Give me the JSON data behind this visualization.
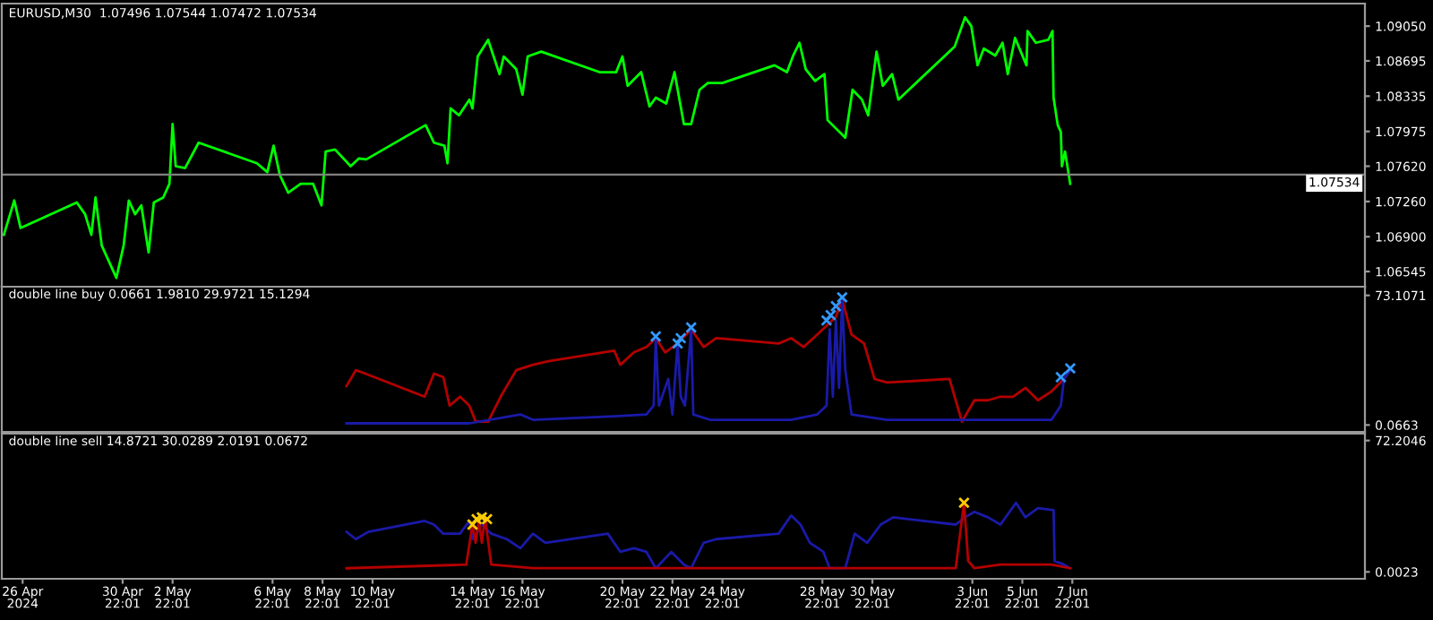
{
  "chart_data": [
    {
      "type": "line",
      "title": "EURUSD,M30  1.07496 1.07544 1.07472 1.07534",
      "xlim": [
        "2024-04-26T02:00",
        "2024-06-19T15:00"
      ],
      "ylim": [
        1.0639,
        1.0928
      ],
      "yticks": [
        {
          "value": 1.06545,
          "label": "1.06545"
        },
        {
          "value": 1.069,
          "label": "1.06900"
        },
        {
          "value": 1.0726,
          "label": "1.07260"
        },
        {
          "value": 1.0762,
          "label": "1.07620"
        },
        {
          "value": 1.07975,
          "label": "1.07975"
        },
        {
          "value": 1.08335,
          "label": "1.08335"
        },
        {
          "value": 1.08695,
          "label": "1.08695"
        },
        {
          "value": 1.0905,
          "label": "1.09050"
        }
      ],
      "tick_labels": "y",
      "ref_lines": [
        {
          "axis": "y",
          "value": 1.07534,
          "label": "1.07534",
          "color": "#808080"
        }
      ],
      "series": [
        {
          "color": "#00ff00",
          "x": [
            "2024-04-26T04:00",
            "2024-04-26T14:00",
            "2024-04-26T20:00",
            "2024-04-29T02:00",
            "2024-04-29T10:00",
            "2024-04-29T16:00",
            "2024-04-29T20:00",
            "2024-04-30T02:00",
            "2024-04-30T16:00",
            "2024-04-30T23:00",
            "2024-05-01T04:00",
            "2024-05-01T10:00",
            "2024-05-01T16:00",
            "2024-05-01T23:00",
            "2024-05-02T04:00",
            "2024-05-02T13:00",
            "2024-05-02T19:00",
            "2024-05-02T22:00",
            "2024-05-03T01:00",
            "2024-05-03T10:00",
            "2024-05-03T23:00",
            "2024-05-06T07:00",
            "2024-05-06T17:00",
            "2024-05-06T23:00",
            "2024-05-07T05:00",
            "2024-05-07T13:00",
            "2024-05-08T01:00",
            "2024-05-08T13:00",
            "2024-05-08T21:00",
            "2024-05-09T01:00",
            "2024-05-09T10:00",
            "2024-05-10T01:00",
            "2024-05-10T09:00",
            "2024-05-10T16:00",
            "2024-05-13T01:00",
            "2024-05-13T09:00",
            "2024-05-13T19:00",
            "2024-05-13T22:00",
            "2024-05-14T01:00",
            "2024-05-14T09:00",
            "2024-05-14T19:00",
            "2024-05-14T22:00",
            "2024-05-15T03:00",
            "2024-05-15T13:00",
            "2024-05-16T00:00",
            "2024-05-16T04:00",
            "2024-05-16T16:00",
            "2024-05-16T22:00",
            "2024-05-17T03:00",
            "2024-05-17T16:00",
            "2024-05-20T00:00",
            "2024-05-20T16:00",
            "2024-05-20T22:00",
            "2024-05-21T03:00",
            "2024-05-21T16:00",
            "2024-05-22T00:00",
            "2024-05-22T06:00",
            "2024-05-22T16:00",
            "2024-05-23T00:00",
            "2024-05-23T09:00",
            "2024-05-23T16:00",
            "2024-05-24T00:00",
            "2024-05-24T08:00",
            "2024-05-24T22:00",
            "2024-05-27T00:00",
            "2024-05-27T12:00",
            "2024-05-27T18:00",
            "2024-05-28T00:00",
            "2024-05-28T06:00",
            "2024-05-28T15:00",
            "2024-05-29T00:00",
            "2024-05-29T03:00",
            "2024-05-29T20:00",
            "2024-05-30T03:00",
            "2024-05-30T12:00",
            "2024-05-30T18:00",
            "2024-05-31T02:00",
            "2024-05-31T08:00",
            "2024-05-31T17:00",
            "2024-05-31T23:00",
            "2024-06-03T05:00",
            "2024-06-03T15:00",
            "2024-06-03T21:00",
            "2024-06-04T03:00",
            "2024-06-04T09:00",
            "2024-06-04T20:00",
            "2024-06-05T03:00",
            "2024-06-05T08:00",
            "2024-06-05T15:00",
            "2024-06-06T02:00",
            "2024-06-06T03:00",
            "2024-06-06T11:00",
            "2024-06-06T23:00",
            "2024-06-07T03:00",
            "2024-06-07T04:00",
            "2024-06-07T08:00",
            "2024-06-07T11:00",
            "2024-06-07T12:00",
            "2024-06-07T15:00",
            "2024-06-07T20:00"
          ],
          "values": [
            1.0692,
            1.0727,
            1.0699,
            1.0725,
            1.0713,
            1.0692,
            1.073,
            1.0681,
            1.0648,
            1.0681,
            1.0727,
            1.0713,
            1.0722,
            1.0674,
            1.0725,
            1.073,
            1.0744,
            1.0805,
            1.0762,
            1.076,
            1.0786,
            1.0765,
            1.0756,
            1.0783,
            1.0753,
            1.0735,
            1.0744,
            1.0744,
            1.0722,
            1.0777,
            1.0779,
            1.0762,
            1.077,
            1.0769,
            1.0804,
            1.0786,
            1.0783,
            1.0765,
            1.0821,
            1.0814,
            1.083,
            1.0821,
            1.0874,
            1.0891,
            1.0856,
            1.0874,
            1.0861,
            1.0835,
            1.0874,
            1.0879,
            1.0858,
            1.0858,
            1.0874,
            1.0844,
            1.0858,
            1.0823,
            1.0832,
            1.0826,
            1.0858,
            1.0805,
            1.0805,
            1.084,
            1.0847,
            1.0847,
            1.0865,
            1.0858,
            1.0875,
            1.0888,
            1.0861,
            1.0849,
            1.0856,
            1.0809,
            1.0791,
            1.084,
            1.083,
            1.0814,
            1.0879,
            1.0844,
            1.0856,
            1.083,
            1.0884,
            1.0914,
            1.0905,
            1.0865,
            1.0882,
            1.0875,
            1.0888,
            1.0856,
            1.0893,
            1.0865,
            1.09,
            1.0888,
            1.0891,
            1.09,
            1.0832,
            1.0804,
            1.0797,
            1.0762,
            1.0777,
            1.0744
          ]
        }
      ]
    },
    {
      "type": "line",
      "title": "double line buy 0.0661 1.9810 29.9721 15.1294",
      "xlim": [
        "2024-04-26T02:00",
        "2024-06-19T15:00"
      ],
      "ylim": [
        -3.8,
        78.0
      ],
      "yticks": [
        {
          "value": 0.0663,
          "label": "0.0663"
        },
        {
          "value": 73.1071,
          "label": "73.1071"
        }
      ],
      "tick_labels": "y",
      "series": [
        {
          "color": "#b40000",
          "x": [
            "2024-05-09T21:00",
            "2024-05-10T06:00",
            "2024-05-10T15:00",
            "2024-05-13T00:00",
            "2024-05-13T09:00",
            "2024-05-13T18:00",
            "2024-05-14T00:00",
            "2024-05-14T10:00",
            "2024-05-14T19:00",
            "2024-05-15T01:00",
            "2024-05-15T13:00",
            "2024-05-16T01:00",
            "2024-05-16T16:00",
            "2024-05-17T08:00",
            "2024-05-17T23:00",
            "2024-05-20T14:00",
            "2024-05-20T20:00",
            "2024-05-21T09:00",
            "2024-05-21T21:00",
            "2024-05-22T06:00",
            "2024-05-22T15:00",
            "2024-05-23T03:00",
            "2024-05-23T16:00",
            "2024-05-24T04:00",
            "2024-05-24T16:00",
            "2024-05-27T04:00",
            "2024-05-27T16:00",
            "2024-05-28T04:00",
            "2024-05-28T17:00",
            "2024-05-29T02:00",
            "2024-05-29T11:00",
            "2024-05-29T17:00",
            "2024-05-30T02:00",
            "2024-05-30T14:00",
            "2024-05-31T00:00",
            "2024-05-31T12:00",
            "2024-06-03T00:00",
            "2024-06-03T12:00",
            "2024-06-04T00:00",
            "2024-06-04T13:00",
            "2024-06-05T01:00",
            "2024-06-05T13:00",
            "2024-06-06T01:00",
            "2024-06-06T13:00",
            "2024-06-07T02:00",
            "2024-06-07T14:00",
            "2024-06-07T20:00"
          ],
          "values": [
            22,
            31,
            29,
            16,
            29,
            27,
            11,
            16,
            11,
            2,
            2,
            16,
            31,
            34,
            36,
            42,
            34,
            41,
            44,
            49,
            41,
            46,
            54,
            44,
            49,
            46,
            49,
            44,
            51,
            56,
            61,
            71,
            51,
            46,
            26,
            24,
            26,
            2,
            14,
            14,
            16,
            16,
            21,
            14,
            19,
            26,
            31
          ]
        },
        {
          "color": "#1a1aa8",
          "x": [
            "2024-05-09T21:00",
            "2024-05-14T19:00",
            "2024-05-16T20:00",
            "2024-05-17T08:00",
            "2024-05-20T14:00",
            "2024-05-21T21:00",
            "2024-05-22T04:00",
            "2024-05-22T06:00",
            "2024-05-22T09:00",
            "2024-05-22T18:00",
            "2024-05-22T22:00",
            "2024-05-23T03:00",
            "2024-05-23T06:00",
            "2024-05-23T10:00",
            "2024-05-23T16:00",
            "2024-05-23T18:00",
            "2024-05-24T10:00",
            "2024-05-27T16:00",
            "2024-05-28T17:00",
            "2024-05-29T02:00",
            "2024-05-29T05:00",
            "2024-05-29T08:00",
            "2024-05-29T11:00",
            "2024-05-29T14:00",
            "2024-05-29T17:00",
            "2024-05-29T20:00",
            "2024-05-30T02:00",
            "2024-05-31T12:00",
            "2024-06-05T01:00",
            "2024-06-07T02:00",
            "2024-06-07T11:00",
            "2024-06-07T14:00",
            "2024-06-07T20:00"
          ],
          "values": [
            1,
            1,
            6,
            3,
            5,
            6,
            11,
            49,
            11,
            26,
            6,
            46,
            16,
            11,
            54,
            6,
            3,
            3,
            6,
            11,
            54,
            16,
            59,
            21,
            71,
            31,
            6,
            3,
            3,
            3,
            11,
            26,
            31
          ]
        },
        {
          "type": "scatter",
          "marker": "cross",
          "color": "#3399ff",
          "x": [
            "2024-05-22T06:00",
            "2024-05-23T03:00",
            "2024-05-23T06:00",
            "2024-05-23T16:00",
            "2024-05-29T02:00",
            "2024-05-29T06:00",
            "2024-05-29T11:00",
            "2024-05-29T17:00",
            "2024-06-07T11:00",
            "2024-06-07T20:00"
          ],
          "values": [
            50,
            46,
            49,
            55,
            59,
            62,
            67,
            72,
            27,
            32
          ]
        }
      ]
    },
    {
      "type": "line",
      "title": "double line sell 14.8721 30.0289 2.0191 0.0672",
      "xlim": [
        "2024-04-26T02:00",
        "2024-06-19T15:00"
      ],
      "ylim": [
        -3.8,
        76.0
      ],
      "yticks": [
        {
          "value": 0.0023,
          "label": "0.0023"
        },
        {
          "value": 72.2046,
          "label": "72.2046"
        }
      ],
      "xticks": [
        {
          "value": "2024-04-26T22:01",
          "label": "26 Apr 2024"
        },
        {
          "value": "2024-04-30T22:01",
          "label": "30 Apr 22:01"
        },
        {
          "value": "2024-05-02T22:01",
          "label": "2 May 22:01"
        },
        {
          "value": "2024-05-06T22:01",
          "label": "6 May 22:01"
        },
        {
          "value": "2024-05-08T22:01",
          "label": "8 May 22:01"
        },
        {
          "value": "2024-05-10T22:01",
          "label": "10 May 22:01"
        },
        {
          "value": "2024-05-14T22:01",
          "label": "14 May 22:01"
        },
        {
          "value": "2024-05-16T22:01",
          "label": "16 May 22:01"
        },
        {
          "value": "2024-05-20T22:01",
          "label": "20 May 22:01"
        },
        {
          "value": "2024-05-22T22:01",
          "label": "22 May 22:01"
        },
        {
          "value": "2024-05-24T22:01",
          "label": "24 May 22:01"
        },
        {
          "value": "2024-05-28T22:01",
          "label": "28 May 22:01"
        },
        {
          "value": "2024-05-30T22:01",
          "label": "30 May 22:01"
        },
        {
          "value": "2024-06-03T22:01",
          "label": "3 Jun 22:01"
        },
        {
          "value": "2024-06-05T22:01",
          "label": "5 Jun 22:01"
        },
        {
          "value": "2024-06-07T22:01",
          "label": "7 Jun 22:01"
        }
      ],
      "series": [
        {
          "color": "#1a1aa8",
          "x": [
            "2024-05-09T21:00",
            "2024-05-10T06:00",
            "2024-05-10T18:00",
            "2024-05-13T00:00",
            "2024-05-13T09:00",
            "2024-05-13T18:00",
            "2024-05-14T10:00",
            "2024-05-14T19:00",
            "2024-05-14T22:00",
            "2024-05-15T07:00",
            "2024-05-15T16:00",
            "2024-05-16T07:00",
            "2024-05-16T20:00",
            "2024-05-17T08:00",
            "2024-05-17T20:00",
            "2024-05-20T08:00",
            "2024-05-20T20:00",
            "2024-05-21T09:00",
            "2024-05-21T21:00",
            "2024-05-22T06:00",
            "2024-05-22T21:00",
            "2024-05-23T09:00",
            "2024-05-23T16:00",
            "2024-05-24T04:00",
            "2024-05-24T16:00",
            "2024-05-27T04:00",
            "2024-05-27T16:00",
            "2024-05-28T01:00",
            "2024-05-28T10:00",
            "2024-05-28T23:00",
            "2024-05-29T05:00",
            "2024-05-29T20:00",
            "2024-05-30T05:00",
            "2024-05-30T17:00",
            "2024-05-31T06:00",
            "2024-05-31T18:00",
            "2024-06-03T06:00",
            "2024-06-03T15:00",
            "2024-06-04T00:00",
            "2024-06-04T13:00",
            "2024-06-05T01:00",
            "2024-06-05T16:00",
            "2024-06-06T01:00",
            "2024-06-06T13:00",
            "2024-06-07T04:00",
            "2024-06-07T05:00",
            "2024-06-07T14:00",
            "2024-06-07T20:00"
          ],
          "values": [
            22,
            18,
            22,
            28,
            26,
            21,
            21,
            28,
            18,
            26,
            21,
            18,
            13,
            21,
            16,
            21,
            11,
            13,
            11,
            2,
            11,
            4,
            2,
            16,
            18,
            21,
            31,
            26,
            16,
            11,
            2,
            2,
            21,
            16,
            26,
            30,
            26,
            30,
            33,
            30,
            26,
            38,
            30,
            35,
            34,
            6,
            4,
            2
          ]
        },
        {
          "color": "#b40000",
          "x": [
            "2024-05-09T21:00",
            "2024-05-14T16:00",
            "2024-05-14T22:00",
            "2024-05-15T01:00",
            "2024-05-15T04:00",
            "2024-05-15T07:00",
            "2024-05-15T10:00",
            "2024-05-15T16:00",
            "2024-05-17T08:00",
            "2024-06-03T06:00",
            "2024-06-03T14:00",
            "2024-06-03T18:00",
            "2024-06-04T00:00",
            "2024-06-05T01:00",
            "2024-06-07T02:00",
            "2024-06-07T20:00"
          ],
          "values": [
            2,
            4,
            26,
            16,
            28,
            16,
            30,
            4,
            2,
            2,
            38,
            6,
            2,
            4,
            4,
            2
          ]
        },
        {
          "type": "scatter",
          "marker": "cross",
          "color": "#ffcc00",
          "x": [
            "2024-05-14T22:00",
            "2024-05-15T02:00",
            "2024-05-15T07:00",
            "2024-05-15T12:00",
            "2024-06-03T14:00"
          ],
          "values": [
            26,
            29,
            30,
            29,
            38
          ]
        }
      ]
    }
  ]
}
